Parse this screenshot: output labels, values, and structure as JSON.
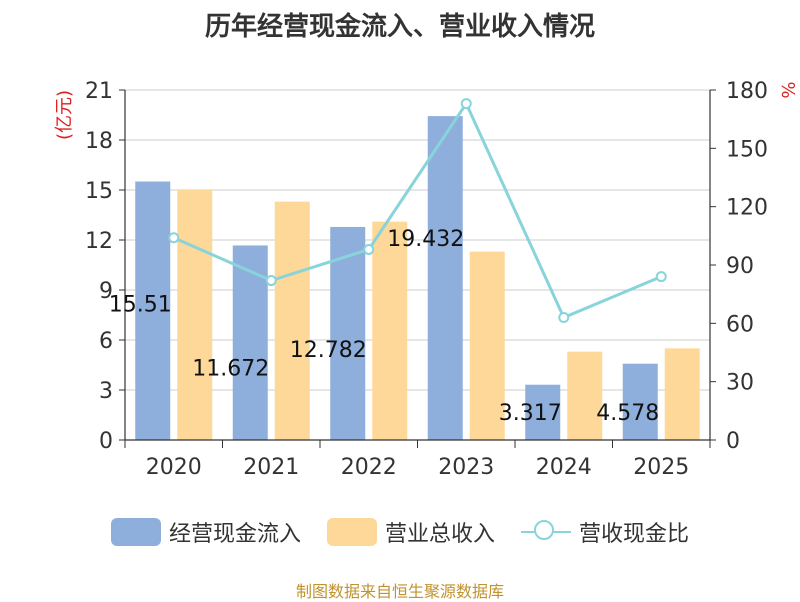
{
  "chart_data": {
    "type": "bar",
    "title": "历年经营现金流入、营业收入情况",
    "categories": [
      "2020",
      "2021",
      "2022",
      "2023",
      "2024",
      "2025"
    ],
    "left_unit": "(亿元)",
    "right_unit": "%",
    "ylim_left": [
      0,
      21
    ],
    "yticks_left": [
      0,
      3,
      6,
      9,
      12,
      15,
      18,
      21
    ],
    "ylim_right": [
      0,
      180
    ],
    "yticks_right": [
      0,
      30,
      60,
      90,
      120,
      150,
      180
    ],
    "grid": true,
    "legend_position": "bottom",
    "series": [
      {
        "name": "经营现金流入",
        "type": "bar",
        "axis": "left",
        "color": "#8eaedb",
        "values": [
          15.51,
          11.672,
          12.782,
          19.432,
          3.317,
          4.578
        ],
        "labels": [
          "15.51",
          "11.672",
          "12.782",
          "19.432",
          "3.317",
          "4.578"
        ]
      },
      {
        "name": "营业总收入",
        "type": "bar",
        "axis": "left",
        "color": "#fdd898",
        "values": [
          15.0,
          14.3,
          13.1,
          11.3,
          5.3,
          5.5
        ]
      },
      {
        "name": "营收现金比",
        "type": "line",
        "axis": "right",
        "color": "#88d4da",
        "values": [
          104,
          82,
          98,
          173,
          63,
          84
        ]
      }
    ]
  },
  "source": "制图数据来自恒生聚源数据库"
}
